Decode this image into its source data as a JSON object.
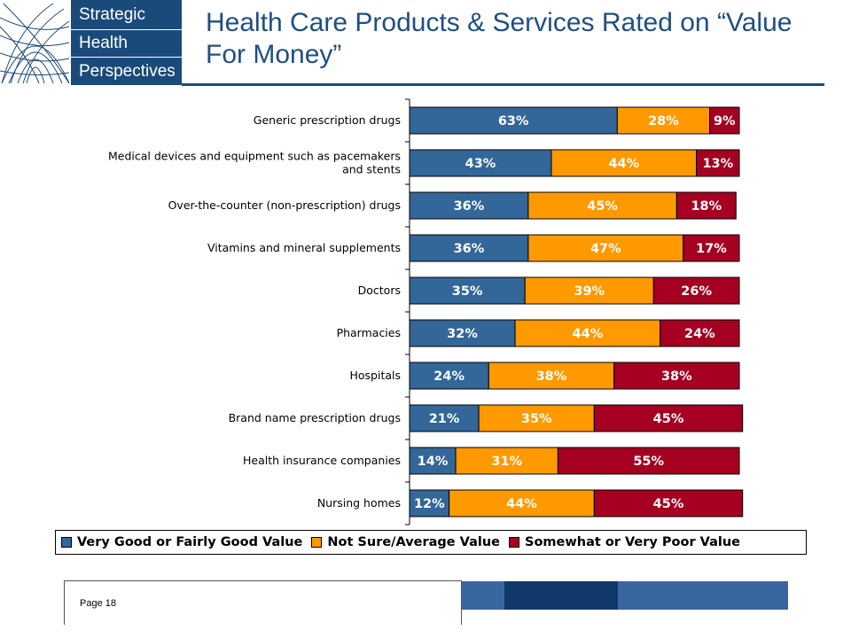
{
  "logo": {
    "words": [
      "Strategic",
      "Health",
      "Perspectives"
    ]
  },
  "title": "Health Care Products & Services Rated on “Value For Money”",
  "footer": {
    "page": "Page 18"
  },
  "colors": {
    "brand": "#1a4a7a",
    "title": "#1f4e85"
  },
  "chart_data": {
    "type": "bar",
    "orientation": "horizontal",
    "stacked": true,
    "categories": [
      "Generic prescription drugs",
      "Medical devices and equipment such as pacemakers and stents",
      "Over-the-counter (non-prescription) drugs",
      "Vitamins and mineral supplements",
      "Doctors",
      "Pharmacies",
      "Hospitals",
      "Brand name prescription drugs",
      "Health insurance companies",
      "Nursing homes"
    ],
    "category_label_lines": [
      [
        "Generic prescription drugs"
      ],
      [
        "Medical devices and equipment such as pacemakers",
        "and stents"
      ],
      [
        "Over-the-counter (non-prescription) drugs"
      ],
      [
        "Vitamins and mineral supplements"
      ],
      [
        "Doctors"
      ],
      [
        "Pharmacies"
      ],
      [
        "Hospitals"
      ],
      [
        "Brand name prescription drugs"
      ],
      [
        "Health insurance companies"
      ],
      [
        "Nursing homes"
      ]
    ],
    "series": [
      {
        "name": "Very Good or Fairly Good Value",
        "color": "#336699",
        "label_color": "#ffffff",
        "values": [
          63,
          43,
          36,
          36,
          35,
          32,
          24,
          21,
          14,
          12
        ]
      },
      {
        "name": "Not Sure/Average Value",
        "color": "#ff9900",
        "label_color": "#ffffff",
        "values": [
          28,
          44,
          45,
          47,
          39,
          44,
          38,
          35,
          31,
          44
        ]
      },
      {
        "name": "Somewhat or Very Poor Value",
        "color": "#a50021",
        "label_color": "#ffffff",
        "values": [
          9,
          13,
          18,
          17,
          26,
          24,
          38,
          45,
          55,
          45
        ]
      }
    ],
    "value_suffix": "%",
    "xlim": [
      0,
      100
    ],
    "legend_position": "bottom",
    "grid": false
  }
}
